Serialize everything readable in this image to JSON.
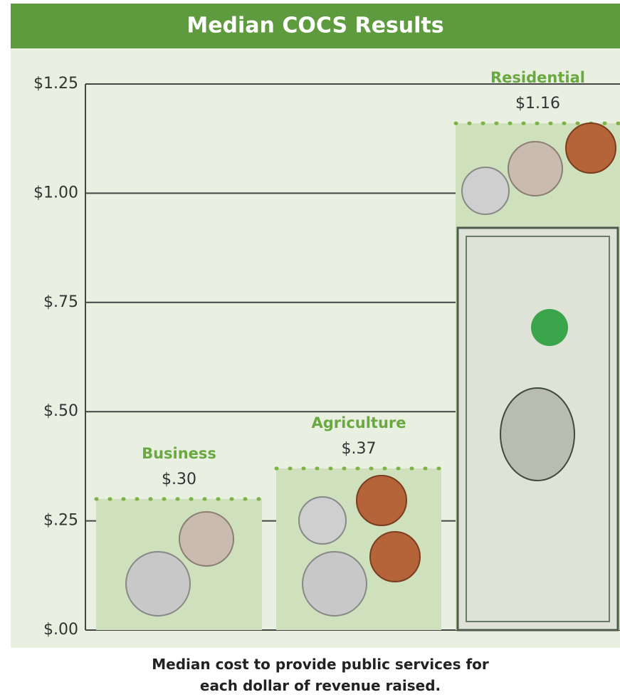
{
  "chart_data": {
    "type": "bar",
    "title": "Median COCS Results",
    "categories": [
      "Business",
      "Agriculture",
      "Residential"
    ],
    "values": [
      0.3,
      0.37,
      1.16
    ],
    "value_labels": [
      "$.30",
      "$.37",
      "$1.16"
    ],
    "color": "#cfe0bd",
    "ylim": [
      0,
      1.25
    ],
    "yticks": [
      {
        "value": 0,
        "label": "$.00"
      },
      {
        "value": 0.25,
        "label": "$.25"
      },
      {
        "value": 0.5,
        "label": "$.50"
      },
      {
        "value": 0.75,
        "label": "$.75"
      },
      {
        "value": 1,
        "label": "$1.00"
      },
      {
        "value": 1.25,
        "label": "$1.25"
      }
    ],
    "grid": true,
    "x_label": "Median cost to provide public services for each dollar of revenue raised."
  }
}
